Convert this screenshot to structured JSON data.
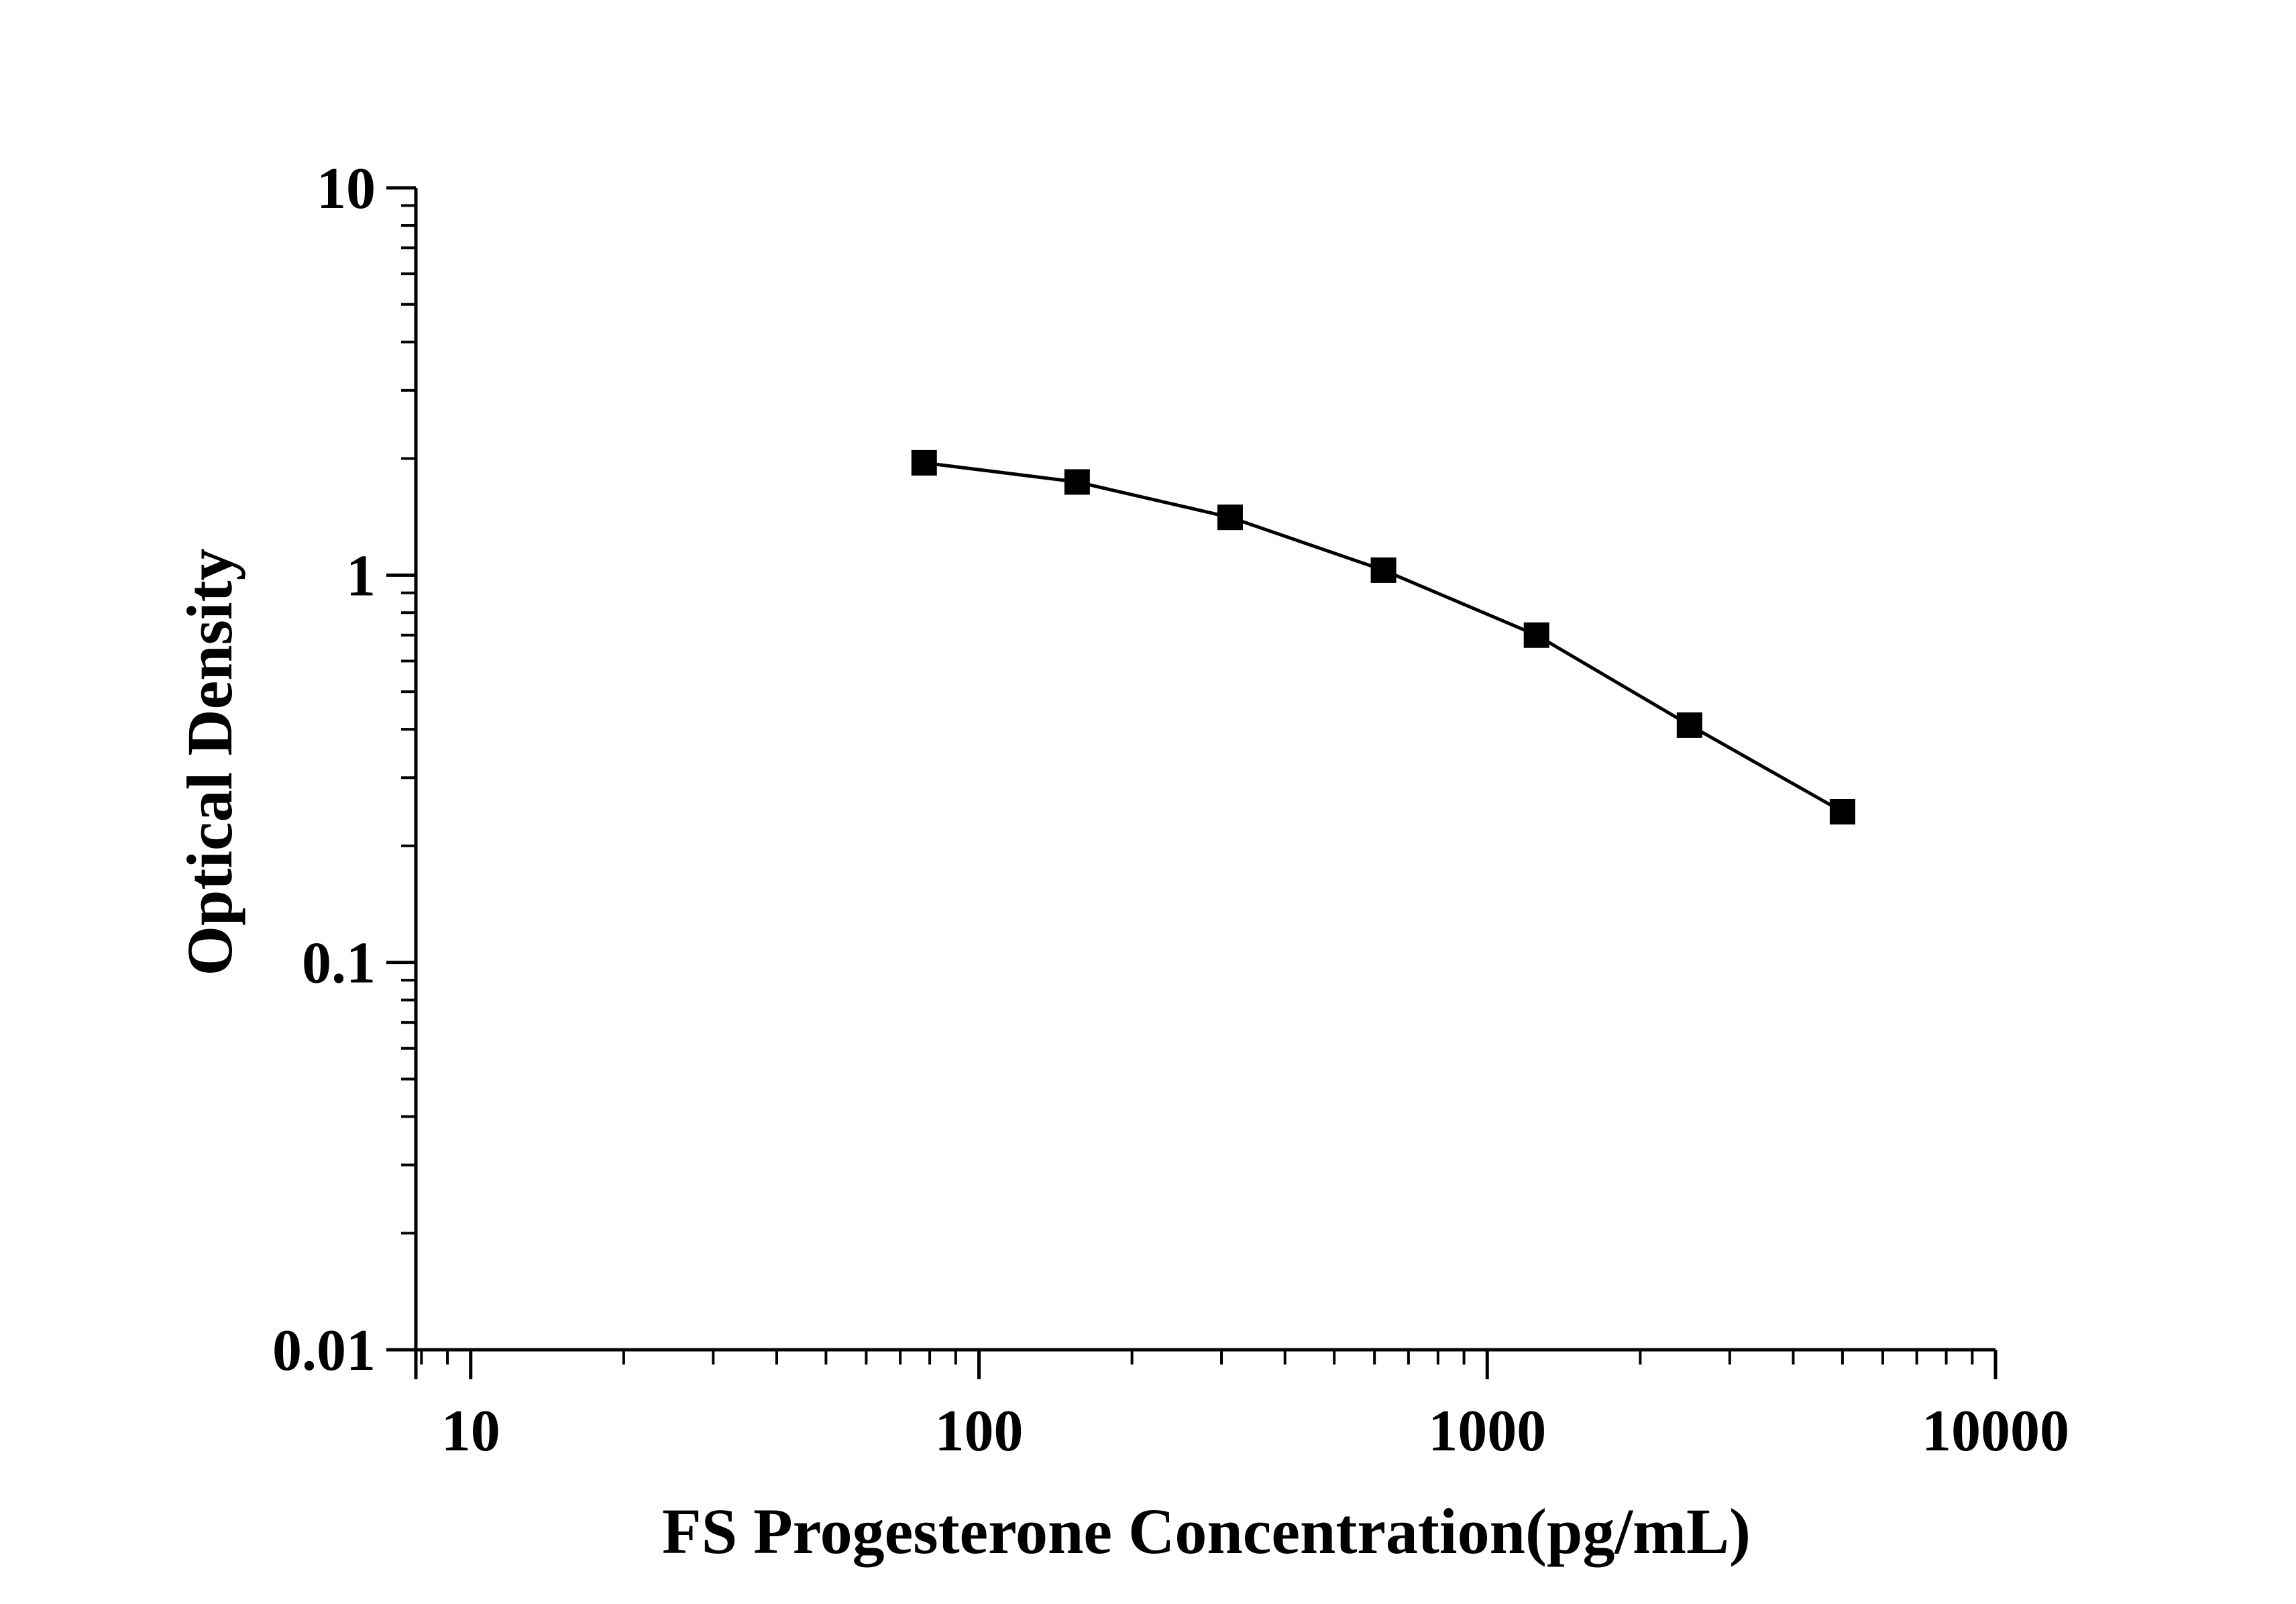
{
  "chart_data": {
    "type": "line",
    "title": "",
    "xlabel": "FS Progesterone Concentration(pg/mL)",
    "ylabel": "Optical Density",
    "xscale": "log",
    "yscale": "log",
    "xlim": [
      7.8,
      10000
    ],
    "ylim": [
      0.01,
      10
    ],
    "x_ticks": [
      10,
      100,
      1000,
      10000
    ],
    "x_tick_labels": [
      "10",
      "100",
      "1000",
      "10000"
    ],
    "y_ticks": [
      0.01,
      0.1,
      1,
      10
    ],
    "y_tick_labels": [
      "0.01",
      "0.1",
      "1",
      "10"
    ],
    "grid": false,
    "legend": "none",
    "series": [
      {
        "marker": "square",
        "color": "#000000",
        "x": [
          78,
          156,
          312,
          625,
          1250,
          2500,
          5000
        ],
        "y": [
          1.95,
          1.74,
          1.41,
          1.03,
          0.7,
          0.41,
          0.245
        ]
      }
    ]
  }
}
